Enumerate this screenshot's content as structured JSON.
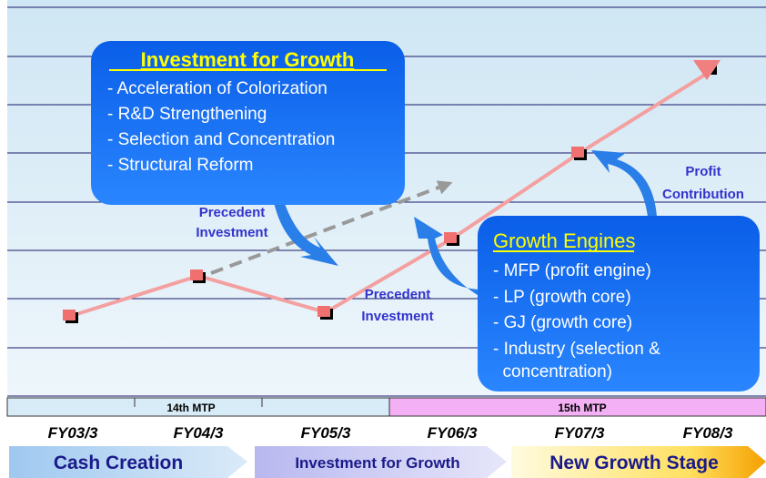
{
  "box_investment": {
    "title": "Investment for Growth",
    "items": [
      "- Acceleration of Colorization",
      "- R&D Strengthening",
      "- Selection and Concentration",
      "- Structural Reform"
    ]
  },
  "box_engines": {
    "title": "Growth Engines",
    "items": [
      "- MFP (profit engine)",
      "- LP (growth core)",
      "- GJ (growth core)",
      "- Industry (selection &",
      "  concentration)"
    ]
  },
  "labels": {
    "precedent_1": [
      "Precedent",
      "Investment"
    ],
    "precedent_2": [
      "Precedent",
      "Investment"
    ],
    "profit": [
      "Profit",
      "Contribution"
    ]
  },
  "plans": [
    "14th MTP",
    "15th MTP"
  ],
  "years": [
    "FY03/3",
    "FY04/3",
    "FY05/3",
    "FY06/3",
    "FY07/3",
    "FY08/3"
  ],
  "stages": [
    "Cash Creation",
    "Investment for Growth",
    "New Growth Stage"
  ]
}
